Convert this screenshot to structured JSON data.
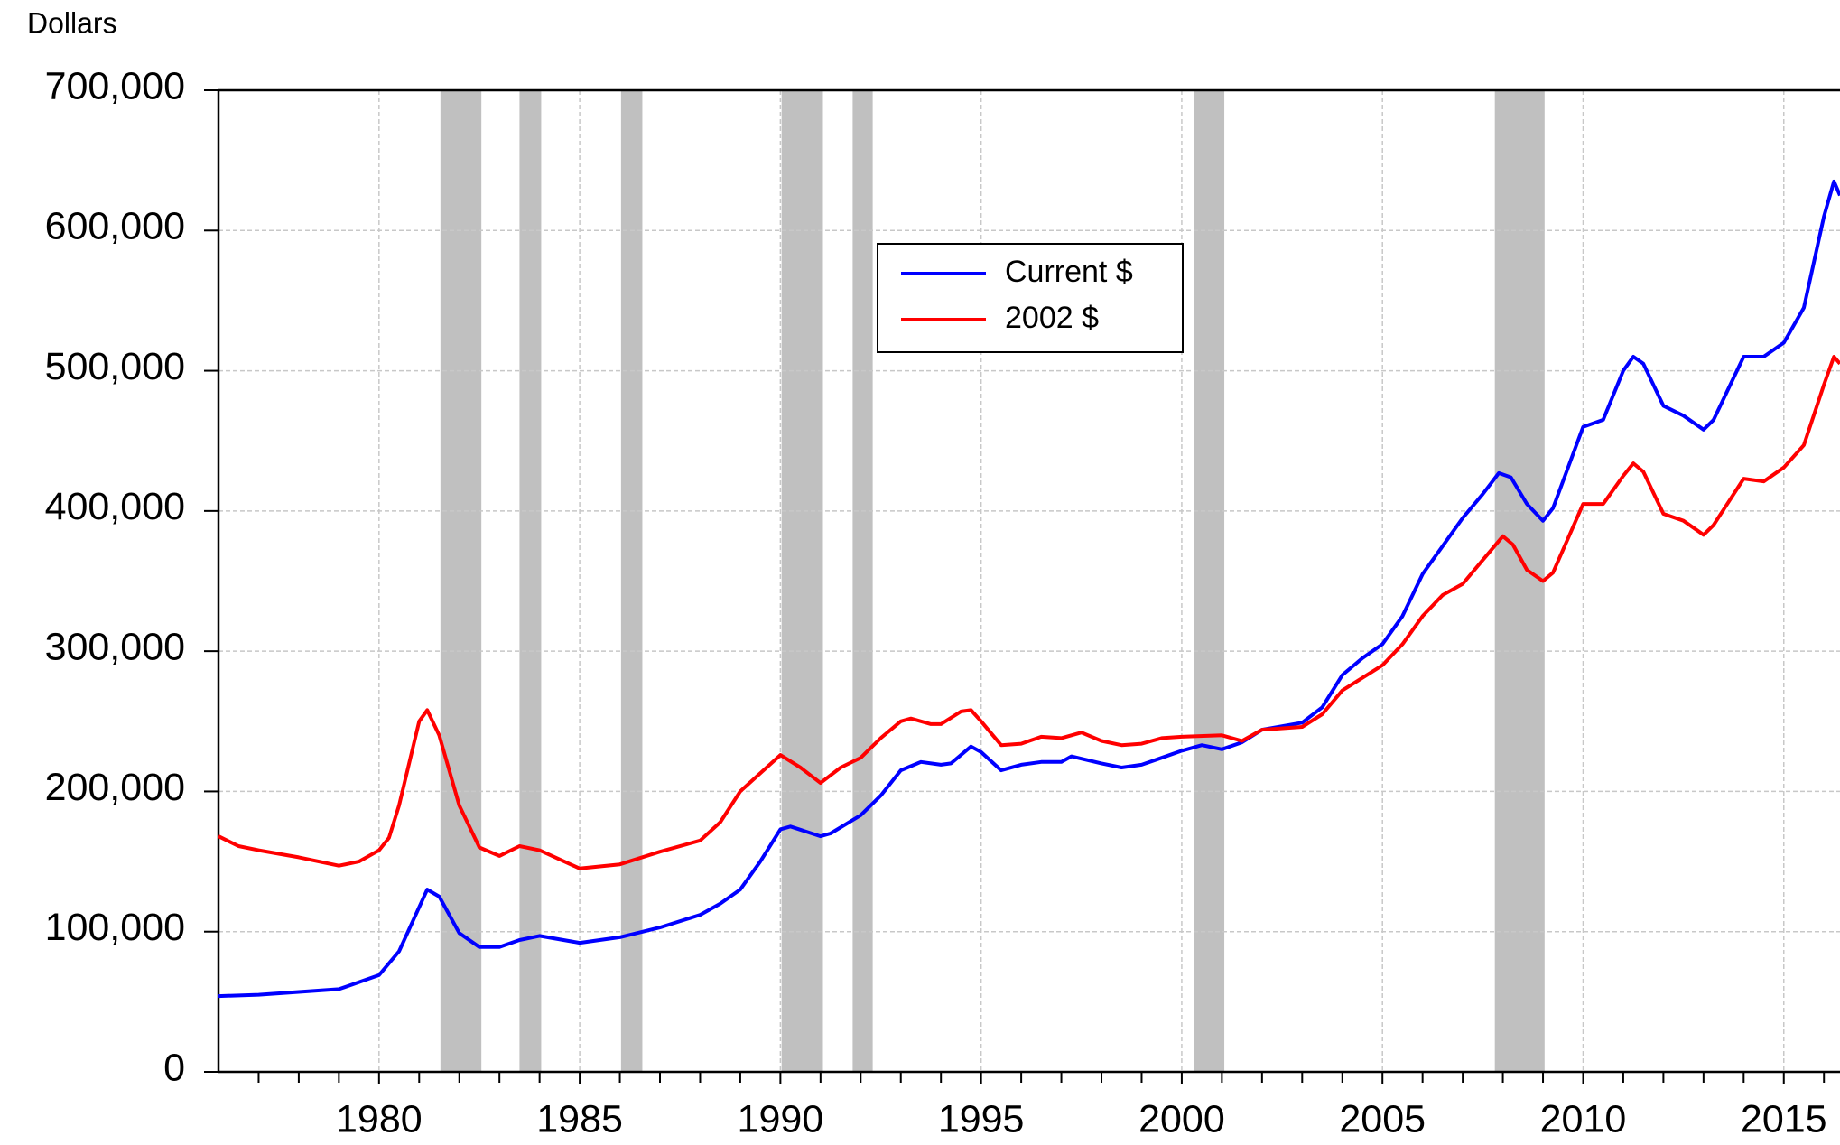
{
  "chart_data": {
    "type": "line",
    "y_label": "Dollars",
    "xlim": [
      1976,
      2016.4
    ],
    "ylim": [
      0,
      700000
    ],
    "xticks": [
      1980,
      1985,
      1990,
      1995,
      2000,
      2005,
      2010,
      2015
    ],
    "xminorticks": [
      1977,
      1978,
      1979,
      1981,
      1982,
      1983,
      1984,
      1986,
      1987,
      1988,
      1989,
      1991,
      1992,
      1993,
      1994,
      1996,
      1997,
      1998,
      1999,
      2001,
      2002,
      2003,
      2004,
      2006,
      2007,
      2008,
      2009,
      2011,
      2012,
      2013,
      2014,
      2016
    ],
    "yticks": [
      0,
      {
        "value": 100000,
        "label": "100,000"
      },
      {
        "value": 200000,
        "label": "200,000"
      },
      {
        "value": 300000,
        "label": "300,000"
      },
      {
        "value": 400000,
        "label": "400,000"
      },
      {
        "value": 500000,
        "label": "500,000"
      },
      {
        "value": 600000,
        "label": "600,000"
      },
      {
        "value": 700000,
        "label": "700,000"
      }
    ],
    "grid": true,
    "shaded_periods": [
      [
        1981.53,
        1982.55
      ],
      [
        1983.5,
        1984.04
      ],
      [
        1986.03,
        1986.56
      ],
      [
        1990.03,
        1991.06
      ],
      [
        1991.8,
        1992.3
      ],
      [
        2000.3,
        2001.06
      ],
      [
        2007.8,
        2009.04
      ]
    ],
    "shade_color": "#c0c0c0",
    "series": [
      {
        "name": "Current $",
        "color": "#0000ff",
        "x": [
          1976,
          1977,
          1978,
          1979,
          1980,
          1980.5,
          1981.2,
          1981.5,
          1982,
          1982.5,
          1983,
          1983.5,
          1984,
          1985,
          1986,
          1987,
          1988,
          1988.5,
          1989,
          1989.5,
          1990,
          1990.25,
          1991,
          1991.25,
          1992,
          1992.5,
          1993,
          1993.5,
          1994,
          1994.25,
          1994.75,
          1995,
          1995.5,
          1996,
          1996.5,
          1997,
          1997.25,
          1998,
          1998.5,
          1999,
          1999.5,
          2000,
          2000.5,
          2001,
          2001.5,
          2002,
          2003,
          2003.5,
          2004,
          2004.5,
          2005,
          2005.5,
          2006,
          2006.5,
          2007,
          2007.5,
          2007.9,
          2008.2,
          2008.6,
          2009,
          2009.25,
          2010,
          2010.5,
          2011,
          2011.25,
          2011.5,
          2012,
          2012.5,
          2013,
          2013.25,
          2014,
          2014.5,
          2015,
          2015.5,
          2016,
          2016.25,
          2016.4
        ],
        "values": [
          54000,
          55000,
          57000,
          59000,
          69000,
          86000,
          130000,
          125000,
          99000,
          89000,
          89000,
          94000,
          97000,
          92000,
          96000,
          103000,
          112000,
          120000,
          130000,
          150000,
          173000,
          175000,
          168000,
          170000,
          183000,
          197000,
          215000,
          221000,
          219000,
          220000,
          232000,
          228000,
          215000,
          219000,
          221000,
          221000,
          225000,
          220000,
          217000,
          219000,
          224000,
          229000,
          233000,
          230000,
          235000,
          244000,
          249000,
          260000,
          283000,
          295000,
          305000,
          325000,
          355000,
          375000,
          395000,
          412000,
          427000,
          424000,
          405000,
          393000,
          402000,
          460000,
          465000,
          500000,
          510000,
          505000,
          475000,
          468000,
          458000,
          465000,
          510000,
          510000,
          520000,
          545000,
          610000,
          635000,
          625000
        ]
      },
      {
        "name": "2002 $",
        "color": "#ff0000",
        "x": [
          1976,
          1976.5,
          1977,
          1978,
          1979,
          1979.5,
          1980,
          1980.25,
          1980.5,
          1981,
          1981.2,
          1981.5,
          1982,
          1982.5,
          1983,
          1983.5,
          1984,
          1985,
          1986,
          1987,
          1988,
          1988.5,
          1989,
          1990,
          1990.5,
          1991,
          1991.5,
          1992,
          1992.5,
          1993,
          1993.25,
          1993.75,
          1994,
          1994.5,
          1994.75,
          1995,
          1995.5,
          1996,
          1996.5,
          1997,
          1997.5,
          1998,
          1998.5,
          1999,
          1999.5,
          2000,
          2001,
          2001.5,
          2002,
          2003,
          2003.5,
          2004,
          2005,
          2005.5,
          2006,
          2006.5,
          2007,
          2007.5,
          2008,
          2008.25,
          2008.6,
          2009,
          2009.25,
          2010,
          2010.5,
          2011,
          2011.25,
          2011.5,
          2012,
          2012.5,
          2013,
          2013.25,
          2014,
          2014.5,
          2015,
          2015.5,
          2016,
          2016.25,
          2016.4
        ],
        "values": [
          168000,
          161000,
          158000,
          153000,
          147000,
          150000,
          158000,
          167000,
          190000,
          250000,
          258000,
          240000,
          190000,
          160000,
          154000,
          161000,
          158000,
          145000,
          148000,
          157000,
          165000,
          178000,
          200000,
          226000,
          217000,
          206000,
          217000,
          224000,
          238000,
          250000,
          252000,
          248000,
          248000,
          257000,
          258000,
          250000,
          233000,
          234000,
          239000,
          238000,
          242000,
          236000,
          233000,
          234000,
          238000,
          239000,
          240000,
          236000,
          244000,
          246000,
          255000,
          272000,
          290000,
          305000,
          325000,
          340000,
          348000,
          365000,
          382000,
          376000,
          358000,
          350000,
          356000,
          405000,
          405000,
          425000,
          434000,
          428000,
          398000,
          393000,
          383000,
          390000,
          423000,
          421000,
          431000,
          447000,
          490000,
          510000,
          505000
        ]
      }
    ]
  }
}
